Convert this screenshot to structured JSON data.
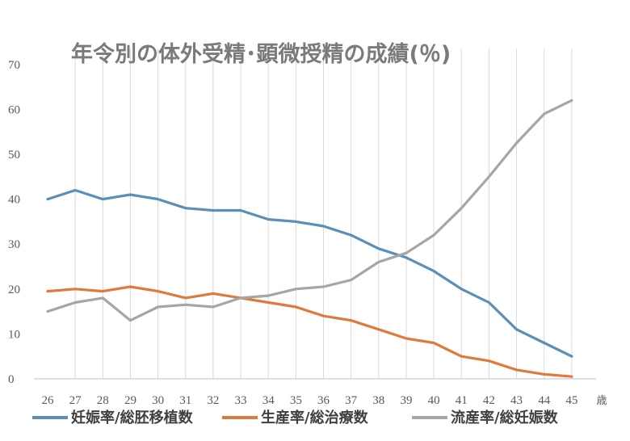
{
  "chart_data": {
    "type": "line",
    "title": "年令別の体外受精･顕微授精の成績(％)",
    "x_unit": "歳",
    "x": [
      26,
      27,
      28,
      29,
      30,
      31,
      32,
      33,
      34,
      35,
      36,
      37,
      38,
      39,
      40,
      41,
      42,
      43,
      44,
      45
    ],
    "ylim": [
      0,
      70
    ],
    "yticks": [
      0,
      10,
      20,
      30,
      40,
      50,
      60,
      70
    ],
    "grid": "vertical",
    "legend_position": "bottom",
    "series": [
      {
        "name": "妊娠率/総胚移植数",
        "color": "#5b8fb9",
        "values": [
          40,
          42,
          40,
          41,
          40,
          38,
          37.5,
          37.5,
          35.5,
          35,
          34,
          32,
          29,
          27,
          24,
          20,
          17,
          11,
          8,
          5
        ]
      },
      {
        "name": "生産率/総治療数",
        "color": "#e07a3c",
        "values": [
          19.5,
          20,
          19.5,
          20.5,
          19.5,
          18,
          19,
          18,
          17,
          16,
          14,
          13,
          11,
          9,
          8,
          5,
          4,
          2,
          1,
          0.5
        ]
      },
      {
        "name": "流産率/総妊娠数",
        "color": "#a6a6a6",
        "values": [
          15,
          17,
          18,
          13,
          16,
          16.5,
          16,
          18,
          18.5,
          20,
          20.5,
          22,
          26,
          28,
          32,
          38,
          45,
          52.5,
          59,
          62
        ]
      }
    ]
  }
}
